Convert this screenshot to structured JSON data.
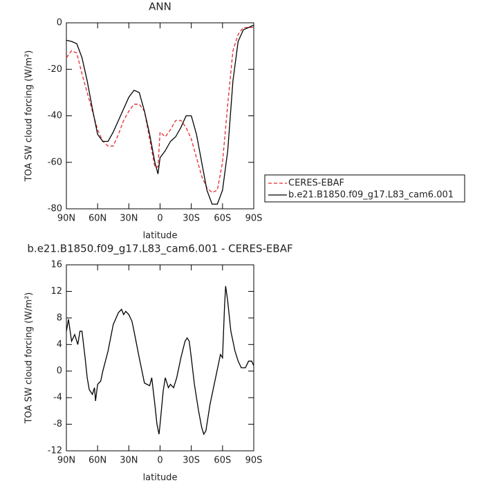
{
  "chart_data": [
    {
      "type": "line",
      "title": "ANN",
      "xlabel": "latitude",
      "ylabel": "TOA SW cloud forcing (W/m²)",
      "x": [
        90,
        85,
        80,
        75,
        70,
        65,
        60,
        55,
        50,
        45,
        40,
        35,
        30,
        25,
        20,
        15,
        10,
        5,
        2,
        0,
        -5,
        -10,
        -15,
        -20,
        -25,
        -30,
        -35,
        -40,
        -45,
        -50,
        -55,
        -60,
        -65,
        -70,
        -75,
        -80,
        -85,
        -90
      ],
      "series": [
        {
          "name": "CERES-EBAF",
          "color": "#e8262a",
          "dash": true,
          "values": [
            -15,
            -12,
            -13,
            -22,
            -30,
            -38,
            -46,
            -51,
            -53,
            -53,
            -48,
            -42,
            -38,
            -35,
            -35,
            -38,
            -50,
            -62,
            -62,
            -47,
            -49,
            -46,
            -42,
            -42,
            -45,
            -50,
            -58,
            -66,
            -71,
            -73,
            -72,
            -60,
            -35,
            -12,
            -5,
            -2,
            -2,
            -2
          ]
        },
        {
          "name": "b.e21.B1850.f09_g17.L83_cam6.001",
          "color": "#000000",
          "dash": false,
          "values": [
            -7.5,
            -8,
            -9,
            -15,
            -25,
            -37,
            -48,
            -51,
            -51,
            -47,
            -42,
            -37,
            -32,
            -29,
            -30,
            -38,
            -48,
            -60,
            -65,
            -58,
            -55,
            -51,
            -49,
            -45,
            -40,
            -40,
            -48,
            -60,
            -72,
            -78,
            -78,
            -72,
            -55,
            -25,
            -8,
            -3,
            -2,
            -1
          ]
        }
      ],
      "xlim": [
        90,
        -90
      ],
      "xticks": [
        {
          "value": 90,
          "label": "90N"
        },
        {
          "value": 60,
          "label": "60N"
        },
        {
          "value": 30,
          "label": "30N"
        },
        0,
        {
          "value": -30,
          "label": "30S"
        },
        {
          "value": -60,
          "label": "60S"
        },
        {
          "value": -90,
          "label": "90S"
        }
      ],
      "ylim": [
        -80,
        0
      ],
      "yticks": [
        0,
        -20,
        -40,
        -60,
        -80
      ],
      "legend": "right"
    },
    {
      "type": "line",
      "title": "b.e21.B1850.f09_g17.L83_cam6.001 - CERES-EBAF",
      "xlabel": "latitude",
      "ylabel": "TOA SW cloud forcing (W/m²)",
      "x": [
        90,
        88,
        85,
        82,
        79,
        77,
        75,
        72,
        70,
        68,
        65,
        63,
        62,
        60,
        57,
        55,
        50,
        45,
        40,
        37,
        35,
        33,
        30,
        27,
        25,
        20,
        15,
        10,
        8,
        5,
        3,
        1,
        0,
        -3,
        -5,
        -8,
        -10,
        -13,
        -16,
        -20,
        -24,
        -26,
        -28,
        -30,
        -33,
        -37,
        -40,
        -42,
        -44,
        -48,
        -52,
        -56,
        -58,
        -60,
        -62,
        -63,
        -65,
        -68,
        -72,
        -75,
        -78,
        -82,
        -85,
        -88,
        -90
      ],
      "values": [
        6,
        7.8,
        4.5,
        5.5,
        4,
        6,
        6,
        2,
        -1,
        -2.8,
        -3.5,
        -2.5,
        -4.5,
        -2,
        -1.5,
        0,
        3,
        7,
        8.8,
        9.3,
        8.5,
        9,
        8.5,
        7.5,
        6,
        2,
        -1.8,
        -2.2,
        -1,
        -5,
        -8,
        -9.5,
        -8,
        -3,
        -1,
        -2.5,
        -2,
        -2.5,
        -1,
        2,
        4.5,
        5,
        4.5,
        2,
        -2,
        -6,
        -8.5,
        -9.5,
        -9,
        -5,
        -2,
        1,
        2.5,
        2,
        10,
        12.8,
        10.5,
        6,
        3,
        1.5,
        0.5,
        0.5,
        1.5,
        1.5,
        0.8
      ],
      "color": "#000000",
      "xlim": [
        90,
        -90
      ],
      "xticks": [
        {
          "value": 90,
          "label": "90N"
        },
        {
          "value": 60,
          "label": "60N"
        },
        {
          "value": 30,
          "label": "30N"
        },
        0,
        {
          "value": -30,
          "label": "30S"
        },
        {
          "value": -60,
          "label": "60S"
        },
        {
          "value": -90,
          "label": "90S"
        }
      ],
      "ylim": [
        -12,
        16
      ],
      "yticks": [
        16,
        12,
        8,
        4,
        0,
        -4,
        -8,
        -12
      ]
    }
  ]
}
